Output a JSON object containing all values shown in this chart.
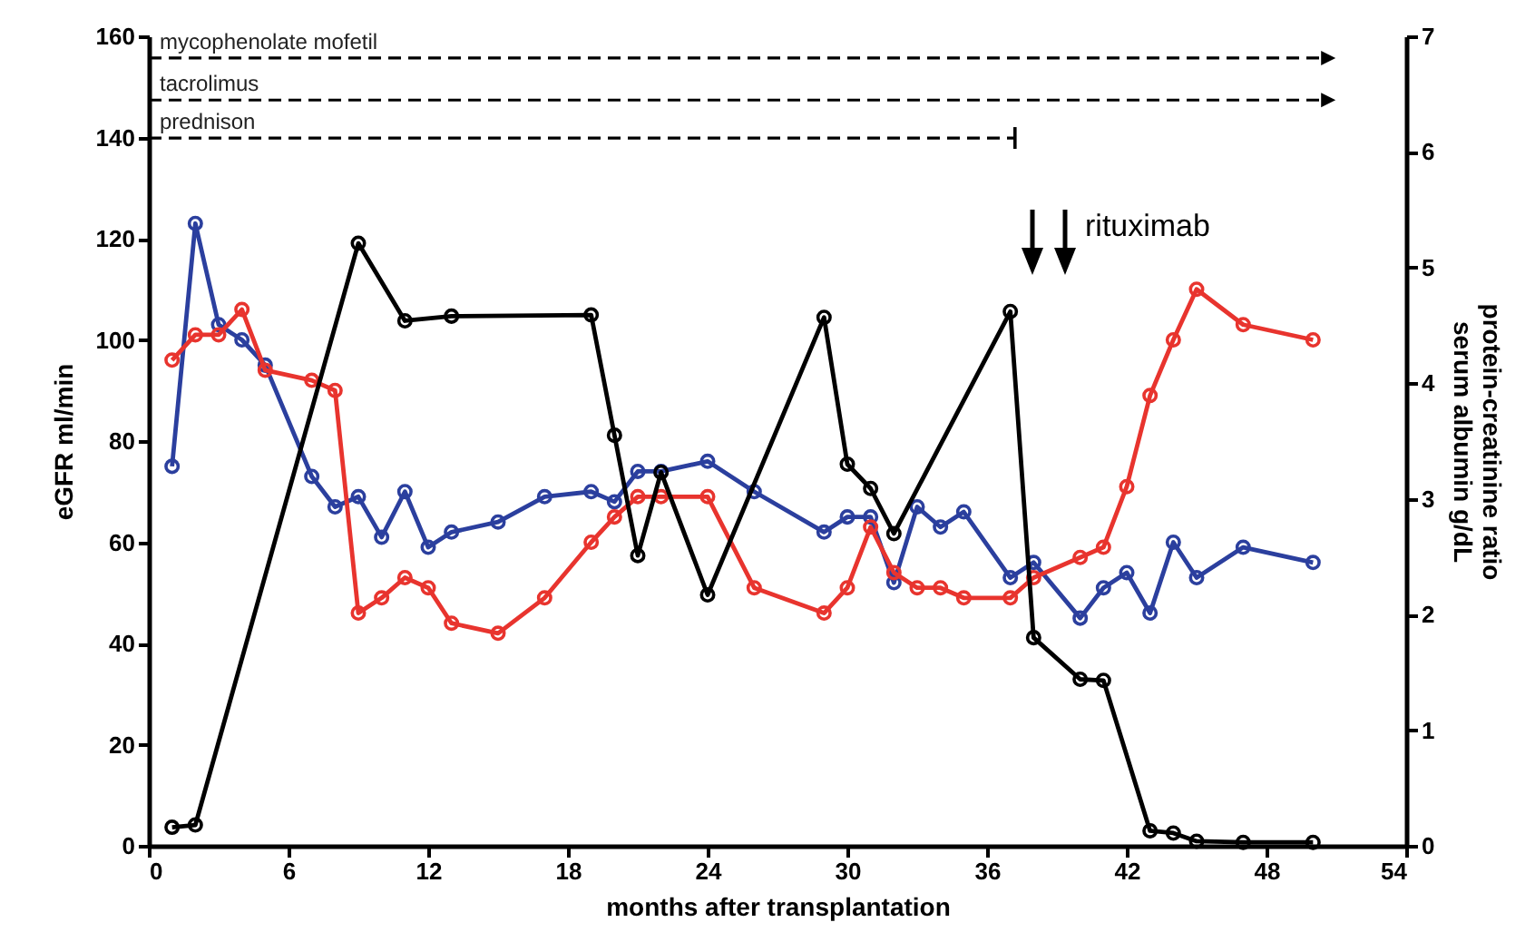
{
  "chart_data": {
    "type": "line",
    "xlabel": "months after transplantation",
    "ylabel": "eGFR ml/min",
    "y2label": "protein-creatinine ratio\nserum albumin g/dL",
    "xlim": [
      0,
      54
    ],
    "xticks": [
      0,
      6,
      12,
      18,
      24,
      30,
      36,
      42,
      48,
      54
    ],
    "ylim": [
      0,
      160
    ],
    "yticks": [
      0,
      20,
      40,
      60,
      80,
      100,
      120,
      140,
      160
    ],
    "y2lim": [
      0,
      7
    ],
    "y2ticks": [
      0,
      1,
      2,
      3,
      4,
      5,
      6,
      7
    ],
    "grid": false,
    "annotations": [
      "rituximab",
      "mycophenolate mofetil",
      "tacrolimus",
      "prednison"
    ],
    "series": [
      {
        "color": "#2b3f9e",
        "marker": "circle",
        "line_style": "solid",
        "x": [
          1,
          2,
          3,
          4,
          5,
          7,
          8,
          9,
          10,
          11,
          12,
          13,
          15,
          17,
          19,
          20,
          21,
          22,
          24,
          26,
          29,
          30,
          31,
          32,
          33,
          34,
          35,
          37,
          38,
          40,
          41,
          42,
          43,
          44,
          45,
          47,
          50
        ],
        "values": [
          75,
          123,
          103,
          100,
          95,
          73,
          67,
          69,
          61,
          70,
          59,
          62,
          64,
          69,
          70,
          68,
          74,
          74,
          76,
          70,
          62,
          65,
          65,
          52,
          67,
          63,
          66,
          53,
          56,
          45,
          51,
          54,
          46,
          60,
          53,
          59,
          56
        ]
      },
      {
        "color": "#e8342e",
        "marker": "circle",
        "line_style": "solid",
        "x": [
          1,
          2,
          3,
          4,
          5,
          7,
          8,
          9,
          10,
          11,
          12,
          13,
          15,
          17,
          19,
          20,
          21,
          22,
          24,
          26,
          29,
          30,
          31,
          32,
          33,
          34,
          35,
          37,
          38,
          40,
          41,
          42,
          43,
          44,
          45,
          47,
          50
        ],
        "values": [
          96,
          101,
          101,
          106,
          94,
          92,
          90,
          46,
          49,
          53,
          51,
          44,
          42,
          49,
          60,
          65,
          69,
          69,
          69,
          51,
          46,
          51,
          63,
          54,
          51,
          51,
          49,
          49,
          53,
          57,
          59,
          71,
          89,
          100,
          110,
          103,
          100
        ]
      },
      {
        "color": "#000000",
        "marker": "circle",
        "line_style": "solid",
        "axis": "y2",
        "x": [
          1,
          2,
          9,
          11,
          13,
          19,
          20,
          21,
          22,
          24,
          29,
          30,
          31,
          32,
          37,
          38,
          40,
          41,
          43,
          44,
          45,
          47,
          50
        ],
        "values": [
          0.16,
          0.18,
          5.21,
          4.54,
          4.58,
          4.59,
          3.55,
          2.51,
          3.23,
          2.17,
          4.57,
          3.3,
          3.09,
          2.7,
          4.62,
          1.8,
          1.44,
          1.43,
          0.13,
          0.11,
          0.04,
          0.03,
          0.03
        ]
      },
      {
        "color": "#000000",
        "line_style": "dashed",
        "x": [
          0,
          50.5
        ],
        "values": [
          155.7,
          155.7
        ]
      },
      {
        "color": "#000000",
        "line_style": "dashed",
        "x": [
          0,
          50.5
        ],
        "values": [
          147.4,
          147.4
        ]
      },
      {
        "color": "#000000",
        "line_style": "dashed",
        "x": [
          0,
          37.2
        ],
        "values": [
          139.9,
          139.9
        ]
      }
    ]
  }
}
